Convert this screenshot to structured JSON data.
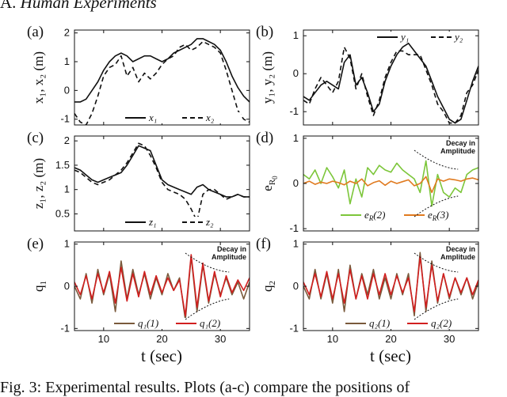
{
  "section_title": {
    "prefix": "A.",
    "text": "Human Experiments"
  },
  "caption": "Fig. 3: Experimental results. Plots (a-c) compare the positions of",
  "x_axis_label": "t (sec)",
  "colors": {
    "black": "#111111",
    "green": "#7cc63a",
    "orange": "#e07a1f",
    "brown": "#7a5a3c",
    "red": "#d11f1f"
  },
  "chart_data": [
    {
      "id": "a",
      "label": "(a)",
      "type": "line",
      "ylabel": "x₁, x₂ (m)",
      "xlim": [
        5,
        35
      ],
      "ylim": [
        -1.2,
        2.1
      ],
      "yticks": [
        "-1",
        "0",
        "1",
        "2"
      ],
      "ytick_values": [
        -1,
        0,
        1,
        2
      ],
      "xticks": [],
      "legend_pos": "bottom-right",
      "series": [
        {
          "name": "x₁",
          "style": "solid",
          "color": "#111111",
          "x": [
            5,
            6,
            7,
            8,
            9,
            10,
            11,
            12,
            13,
            14,
            15,
            16,
            17,
            18,
            19,
            20,
            21,
            22,
            23,
            24,
            25,
            26,
            27,
            28,
            29,
            30,
            31,
            32,
            33,
            34,
            35
          ],
          "y": [
            -0.4,
            -0.4,
            -0.3,
            0,
            0.3,
            0.7,
            1.0,
            1.2,
            1.3,
            1.2,
            1.0,
            1.1,
            1.2,
            1.2,
            1.1,
            1.0,
            1.1,
            1.3,
            1.4,
            1.5,
            1.6,
            1.8,
            1.8,
            1.7,
            1.6,
            1.4,
            1.0,
            0.5,
            0.1,
            -0.2,
            -0.4
          ]
        },
        {
          "name": "x₂",
          "style": "dashed",
          "color": "#111111",
          "x": [
            5,
            6,
            7,
            8,
            9,
            10,
            11,
            12,
            13,
            14,
            15,
            16,
            17,
            18,
            19,
            20,
            21,
            22,
            23,
            24,
            25,
            26,
            27,
            28,
            29,
            30,
            31,
            32,
            33,
            34,
            35
          ],
          "y": [
            -0.8,
            -1.1,
            -1.2,
            -0.8,
            -0.2,
            0.5,
            0.8,
            0.9,
            1.2,
            0.5,
            0.8,
            0.3,
            0.6,
            0.4,
            0.6,
            0.9,
            1.1,
            1.2,
            1.5,
            1.6,
            1.4,
            1.5,
            1.7,
            1.6,
            1.5,
            1.3,
            0.7,
            0.0,
            -0.7,
            -1.0,
            -1.1
          ]
        }
      ]
    },
    {
      "id": "b",
      "label": "(b)",
      "type": "line",
      "ylabel": "y₁, y₂ (m)",
      "xlim": [
        5,
        35
      ],
      "ylim": [
        -1.35,
        1.15
      ],
      "yticks": [
        "-1",
        "0",
        "1"
      ],
      "ytick_values": [
        -1,
        0,
        1
      ],
      "xticks": [],
      "legend_pos": "top-right",
      "series": [
        {
          "name": "y₁",
          "style": "solid",
          "color": "#111111",
          "x": [
            5,
            6,
            7,
            8,
            9,
            10,
            11,
            12,
            13,
            14,
            15,
            16,
            17,
            18,
            19,
            20,
            21,
            22,
            23,
            24,
            25,
            26,
            27,
            28,
            29,
            30,
            31,
            32,
            33,
            34,
            35
          ],
          "y": [
            -0.6,
            -0.7,
            -0.5,
            -0.3,
            -0.2,
            -0.3,
            -0.4,
            0.3,
            0.5,
            -0.3,
            -0.1,
            -0.5,
            -1.0,
            -0.8,
            -0.2,
            0.2,
            0.5,
            0.7,
            0.8,
            0.6,
            0.4,
            0.2,
            -0.2,
            -0.6,
            -0.9,
            -1.2,
            -1.3,
            -1.2,
            -0.7,
            -0.2,
            0.2
          ]
        },
        {
          "name": "y₂",
          "style": "dashed",
          "color": "#111111",
          "x": [
            5,
            6,
            7,
            8,
            9,
            10,
            11,
            12,
            13,
            14,
            15,
            16,
            17,
            18,
            19,
            20,
            21,
            22,
            23,
            24,
            25,
            26,
            27,
            28,
            29,
            30,
            31,
            32,
            33,
            34,
            35
          ],
          "y": [
            -0.7,
            -0.8,
            -0.4,
            -0.1,
            -0.3,
            -0.5,
            -0.2,
            0.7,
            0.4,
            -0.4,
            0.0,
            -0.6,
            -1.1,
            -0.7,
            -0.1,
            0.3,
            0.6,
            0.6,
            0.5,
            0.5,
            0.5,
            0.1,
            -0.3,
            -0.8,
            -1.0,
            -1.3,
            -1.3,
            -1.1,
            -0.5,
            -0.3,
            0.1
          ]
        }
      ]
    },
    {
      "id": "c",
      "label": "(c)",
      "type": "line",
      "ylabel": "z₁, z₂ (m)",
      "xlim": [
        5,
        35
      ],
      "ylim": [
        0.15,
        2.1
      ],
      "yticks": [
        "0.5",
        "1",
        "1.5",
        "2"
      ],
      "ytick_values": [
        0.5,
        1,
        1.5,
        2
      ],
      "xticks": [],
      "legend_pos": "bottom-right",
      "series": [
        {
          "name": "z₁",
          "style": "solid",
          "color": "#111111",
          "x": [
            5,
            6,
            7,
            8,
            9,
            10,
            11,
            12,
            13,
            14,
            15,
            16,
            17,
            18,
            19,
            20,
            21,
            22,
            23,
            24,
            25,
            26,
            27,
            28,
            29,
            30,
            31,
            32,
            33,
            34,
            35
          ],
          "y": [
            1.45,
            1.4,
            1.3,
            1.2,
            1.15,
            1.2,
            1.25,
            1.3,
            1.35,
            1.5,
            1.7,
            1.9,
            1.85,
            1.8,
            1.5,
            1.2,
            1.1,
            1.05,
            1.0,
            0.95,
            0.9,
            1.05,
            1.1,
            1.0,
            0.95,
            0.9,
            0.85,
            0.85,
            0.9,
            0.85,
            0.85
          ]
        },
        {
          "name": "z₂",
          "style": "dashed",
          "color": "#111111",
          "x": [
            5,
            6,
            7,
            8,
            9,
            10,
            11,
            12,
            13,
            14,
            15,
            16,
            17,
            18,
            19,
            20,
            21,
            22,
            23,
            24,
            25,
            26,
            27,
            28,
            29,
            30,
            31,
            32,
            33,
            34,
            35
          ],
          "y": [
            1.4,
            1.35,
            1.25,
            1.15,
            1.1,
            1.15,
            1.2,
            1.3,
            1.4,
            1.55,
            1.75,
            1.95,
            1.9,
            1.7,
            1.45,
            1.15,
            1.0,
            0.95,
            0.9,
            0.8,
            0.6,
            0.35,
            0.9,
            1.0,
            1.0,
            0.9,
            0.8,
            0.85,
            0.9,
            0.85,
            0.85
          ]
        }
      ]
    },
    {
      "id": "d",
      "label": "(d)",
      "type": "line",
      "ylabel": "e_R₀",
      "ylabel_main": "e",
      "ylabel_sub": "R",
      "ylabel_subsub": "0",
      "xlim": [
        5,
        35
      ],
      "ylim": [
        -1.05,
        1.05
      ],
      "yticks": [
        "-1",
        "0",
        "1"
      ],
      "ytick_values": [
        -1,
        0,
        1
      ],
      "xticks": [],
      "legend_pos": "bottom",
      "annotation": [
        "Decay in",
        "Amplitude"
      ],
      "series": [
        {
          "name": "e_R(2)",
          "legend": "e_R(2)",
          "style": "solid",
          "color": "#7cc63a",
          "x": [
            5,
            6,
            7,
            8,
            9,
            10,
            11,
            12,
            13,
            14,
            15,
            16,
            17,
            18,
            19,
            20,
            21,
            22,
            23,
            24,
            25,
            26,
            27,
            28,
            29,
            30,
            31,
            32,
            33,
            34,
            35
          ],
          "y": [
            0.2,
            0.1,
            0.3,
            0.0,
            0.35,
            0.15,
            -0.1,
            0.3,
            -0.45,
            0.1,
            -0.3,
            0.35,
            0.2,
            0.4,
            0.3,
            0.25,
            0.45,
            0.3,
            0.2,
            0.1,
            -0.2,
            0.5,
            -0.5,
            0.2,
            -0.2,
            -0.3,
            -0.1,
            -0.2,
            0.2,
            0.3,
            0.35
          ]
        },
        {
          "name": "e_R(3)",
          "legend": "e_R(3)",
          "style": "solid",
          "color": "#e07a1f",
          "x": [
            5,
            6,
            7,
            8,
            9,
            10,
            11,
            12,
            13,
            14,
            15,
            16,
            17,
            18,
            19,
            20,
            21,
            22,
            23,
            24,
            25,
            26,
            27,
            28,
            29,
            30,
            31,
            32,
            33,
            34,
            35
          ],
          "y": [
            0.0,
            0.05,
            -0.02,
            0.03,
            0.0,
            0.05,
            0.02,
            -0.03,
            0.05,
            0.0,
            0.1,
            -0.05,
            0.02,
            0.06,
            -0.04,
            0.05,
            0.0,
            0.04,
            0.08,
            -0.05,
            0.0,
            0.15,
            -0.2,
            0.1,
            0.05,
            0.1,
            0.08,
            0.05,
            0.1,
            0.12,
            0.08
          ]
        }
      ]
    },
    {
      "id": "e",
      "label": "(e)",
      "type": "line",
      "ylabel": "q₁",
      "ylabel_main": "q",
      "ylabel_sub": "1",
      "xlim": [
        5,
        35
      ],
      "ylim": [
        -1.05,
        1.05
      ],
      "yticks": [
        "-1",
        "0",
        "1"
      ],
      "ytick_values": [
        -1,
        0,
        1
      ],
      "xticks": [
        "10",
        "20",
        "30"
      ],
      "xtick_values": [
        10,
        20,
        30
      ],
      "legend_pos": "bottom",
      "annotation": [
        "Decay in",
        "Amplitude"
      ],
      "series": [
        {
          "name": "q₁(1)",
          "style": "solid",
          "color": "#7a5a3c",
          "x": [
            5,
            6,
            7,
            8,
            9,
            10,
            11,
            12,
            13,
            14,
            15,
            16,
            17,
            18,
            19,
            20,
            21,
            22,
            23,
            24,
            25,
            26,
            27,
            28,
            29,
            30,
            31,
            32,
            33,
            34,
            35
          ],
          "y": [
            0.0,
            -0.3,
            0.3,
            -0.4,
            0.4,
            -0.2,
            0.3,
            -0.6,
            0.6,
            -0.3,
            0.4,
            -0.2,
            0.3,
            -0.3,
            0.2,
            -0.2,
            0.3,
            -0.1,
            0.2,
            -0.8,
            0.7,
            -0.6,
            0.5,
            -0.4,
            0.3,
            -0.2,
            0.2,
            -0.2,
            0.1,
            -0.3,
            0.1
          ]
        },
        {
          "name": "q₁(2)",
          "style": "solid",
          "color": "#d11f1f",
          "x": [
            5,
            6,
            7,
            8,
            9,
            10,
            11,
            12,
            13,
            14,
            15,
            16,
            17,
            18,
            19,
            20,
            21,
            22,
            23,
            24,
            25,
            26,
            27,
            28,
            29,
            30,
            31,
            32,
            33,
            34,
            35
          ],
          "y": [
            0.1,
            -0.2,
            0.25,
            -0.3,
            0.3,
            -0.15,
            0.35,
            -0.4,
            0.45,
            -0.35,
            0.3,
            -0.25,
            0.35,
            -0.2,
            0.25,
            -0.15,
            0.2,
            -0.1,
            0.15,
            -0.7,
            0.75,
            -0.5,
            0.55,
            -0.35,
            0.35,
            -0.25,
            0.25,
            -0.15,
            0.15,
            -0.1,
            0.2
          ]
        }
      ]
    },
    {
      "id": "f",
      "label": "(f)",
      "type": "line",
      "ylabel": "q₂",
      "ylabel_main": "q",
      "ylabel_sub": "2",
      "xlim": [
        5,
        35
      ],
      "ylim": [
        -1.05,
        1.05
      ],
      "yticks": [
        "-1",
        "0",
        "1"
      ],
      "ytick_values": [
        -1,
        0,
        1
      ],
      "xticks": [
        "10",
        "20",
        "30"
      ],
      "xtick_values": [
        10,
        20,
        30
      ],
      "legend_pos": "bottom",
      "annotation": [
        "Decay in",
        "Amplitude"
      ],
      "series": [
        {
          "name": "q₂(1)",
          "style": "solid",
          "color": "#7a5a3c",
          "x": [
            5,
            6,
            7,
            8,
            9,
            10,
            11,
            12,
            13,
            14,
            15,
            16,
            17,
            18,
            19,
            20,
            21,
            22,
            23,
            24,
            25,
            26,
            27,
            28,
            29,
            30,
            31,
            32,
            33,
            34,
            35
          ],
          "y": [
            0.0,
            -0.3,
            0.4,
            -0.3,
            0.3,
            -0.4,
            0.4,
            -0.6,
            0.5,
            -0.3,
            0.3,
            -0.2,
            0.4,
            -0.3,
            0.2,
            -0.3,
            0.3,
            -0.2,
            0.3,
            -0.7,
            0.8,
            -0.6,
            0.6,
            -0.4,
            0.3,
            -0.3,
            0.2,
            -0.2,
            0.2,
            -0.3,
            0.1
          ]
        },
        {
          "name": "q₂(2)",
          "style": "solid",
          "color": "#d11f1f",
          "x": [
            5,
            6,
            7,
            8,
            9,
            10,
            11,
            12,
            13,
            14,
            15,
            16,
            17,
            18,
            19,
            20,
            21,
            22,
            23,
            24,
            25,
            26,
            27,
            28,
            29,
            30,
            31,
            32,
            33,
            34,
            35
          ],
          "y": [
            0.1,
            -0.2,
            0.3,
            -0.25,
            0.35,
            -0.3,
            0.3,
            -0.4,
            0.4,
            -0.3,
            0.25,
            -0.3,
            0.3,
            -0.2,
            0.3,
            -0.2,
            0.25,
            -0.15,
            0.2,
            -0.6,
            0.7,
            -0.5,
            0.5,
            -0.35,
            0.3,
            -0.25,
            0.2,
            -0.15,
            0.2,
            -0.2,
            0.15
          ]
        }
      ]
    }
  ]
}
